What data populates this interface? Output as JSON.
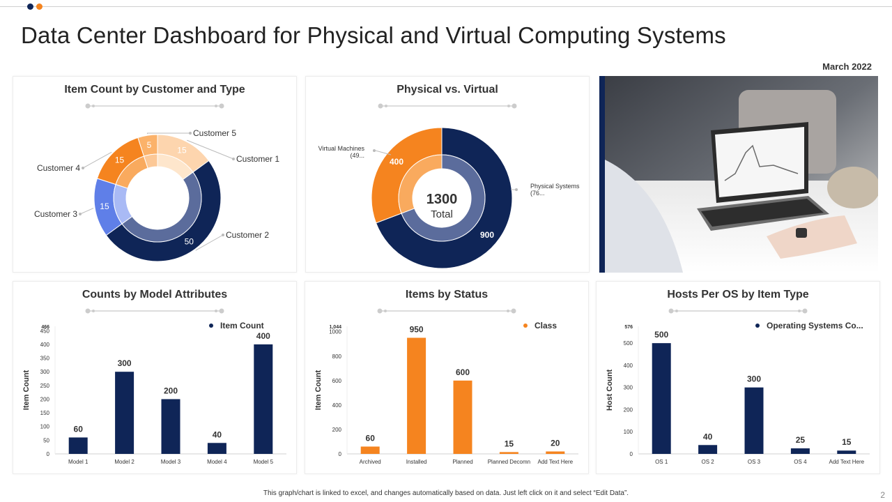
{
  "header": {
    "title": "Data Center Dashboard for Physical and Virtual Computing Systems",
    "date": "March 2022"
  },
  "footer": {
    "note": "This graph/chart is linked to excel, and changes automatically based on data. Just left click on it and select “Edit Data”.",
    "page_number": "2"
  },
  "colors": {
    "navy": "#0f2557",
    "orange": "#f5841f",
    "blue_mid": "#5f7fe8",
    "light_orange": "#fdd5ae"
  },
  "chart_data": [
    {
      "id": "customer-donut",
      "type": "pie",
      "title": "Item Count by Customer and Type",
      "categories": [
        "Customer 1",
        "Customer 2",
        "Customer 3",
        "Customer 4",
        "Customer 5"
      ],
      "values": [
        15,
        50,
        15,
        15,
        5
      ],
      "value_labels": [
        "15",
        "50",
        "15",
        "15",
        "5"
      ],
      "colors": [
        "#fdd5ae",
        "#0f2557",
        "#5f7fe8",
        "#f5841f",
        "#fbb26a"
      ],
      "inner_colors": [
        "#fee6cc",
        "#5b6c9c",
        "#a9baf5",
        "#f9aa5e",
        "#fcc896"
      ]
    },
    {
      "id": "physical-virtual-donut",
      "type": "pie",
      "title": "Physical vs. Virtual",
      "categories": [
        "Physical Systems (76...",
        "Virtual Machines (49..."
      ],
      "values": [
        900,
        400
      ],
      "value_labels": [
        "900",
        "400"
      ],
      "colors": [
        "#0f2557",
        "#f5841f"
      ],
      "inner_colors": [
        "#5b6c9c",
        "#f9aa5e"
      ],
      "center_value": "1300",
      "center_label": "Total",
      "label_lines": [
        [
          "Physical Systems",
          "(76..."
        ],
        [
          "Virtual Machines",
          "(49..."
        ]
      ]
    },
    {
      "id": "model-bars",
      "type": "bar",
      "title": "Counts by Model Attributes",
      "categories": [
        "Model 1",
        "Model 2",
        "Model 3",
        "Model 4",
        "Model 5"
      ],
      "series": [
        {
          "name": "Item Count",
          "values": [
            60,
            300,
            200,
            40,
            400
          ]
        }
      ],
      "ylabel": "Item Count",
      "ylim": [
        0,
        466
      ],
      "yticks": [
        0,
        50,
        100,
        150,
        200,
        250,
        300,
        350,
        400,
        450
      ],
      "ymax_label": "466",
      "color": "#0f2557"
    },
    {
      "id": "status-bars",
      "type": "bar",
      "title": "Items by Status",
      "categories": [
        "Archived",
        "Installed",
        "Planned",
        "Planned Decomn",
        "Add Text Here"
      ],
      "series": [
        {
          "name": "Class",
          "values": [
            60,
            950,
            600,
            15,
            20
          ]
        }
      ],
      "ylabel": "Item Count",
      "ylim": [
        0,
        1044
      ],
      "yticks": [
        0,
        200,
        400,
        600,
        800,
        1000
      ],
      "ymax_label": "1,044",
      "color": "#f5841f"
    },
    {
      "id": "os-bars",
      "type": "bar",
      "title": "Hosts Per OS by Item Type",
      "categories": [
        "OS 1",
        "OS 2",
        "OS 3",
        "OS 4",
        "Add Text Here"
      ],
      "series": [
        {
          "name": "Operating Systems Co...",
          "values": [
            500,
            40,
            300,
            25,
            15
          ]
        }
      ],
      "ylabel": "Host Count",
      "ylim": [
        0,
        576
      ],
      "yticks": [
        0,
        100,
        200,
        300,
        400,
        500
      ],
      "ymax_label": "576",
      "color": "#0f2557"
    }
  ]
}
